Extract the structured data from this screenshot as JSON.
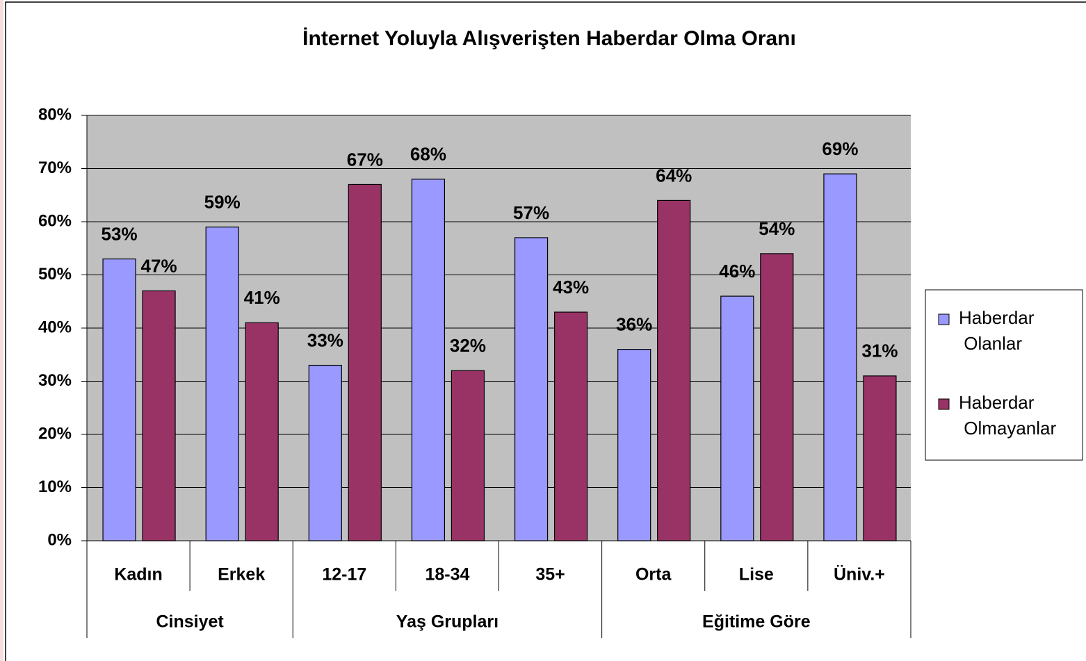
{
  "chart_data": {
    "type": "bar",
    "title": "İnternet Yoluyla Alışverişten Haberdar Olma Oranı",
    "groups": [
      {
        "name": "Cinsiyet",
        "categories": [
          "Kadın",
          "Erkek"
        ]
      },
      {
        "name": "Yaş Grupları",
        "categories": [
          "12-17",
          "18-34",
          "35+"
        ]
      },
      {
        "name": "Eğitime Göre",
        "categories": [
          "Orta",
          "Lise",
          "Üniv.+"
        ]
      }
    ],
    "series": [
      {
        "name": "Haberdar Olanlar",
        "color": "#9999ff",
        "values": [
          53,
          59,
          33,
          68,
          57,
          36,
          46,
          69
        ],
        "value_labels": [
          "53%",
          "59%",
          "33%",
          "68%",
          "57%",
          "36%",
          "46%",
          "69%"
        ]
      },
      {
        "name": "Haberdar Olmayanlar",
        "color": "#993366",
        "values": [
          47,
          41,
          67,
          32,
          43,
          64,
          54,
          31
        ],
        "value_labels": [
          "47%",
          "41%",
          "67%",
          "32%",
          "43%",
          "64%",
          "54%",
          "31%"
        ]
      }
    ],
    "ylim": [
      0,
      80
    ],
    "yticks": [
      {
        "value": 0,
        "label": "0%"
      },
      {
        "value": 10,
        "label": "10%"
      },
      {
        "value": 20,
        "label": "20%"
      },
      {
        "value": 30,
        "label": "30%"
      },
      {
        "value": 40,
        "label": "40%"
      },
      {
        "value": 50,
        "label": "50%"
      },
      {
        "value": 60,
        "label": "60%"
      },
      {
        "value": 70,
        "label": "70%"
      },
      {
        "value": 80,
        "label": "80%"
      }
    ],
    "grid": true,
    "legend": "right"
  }
}
